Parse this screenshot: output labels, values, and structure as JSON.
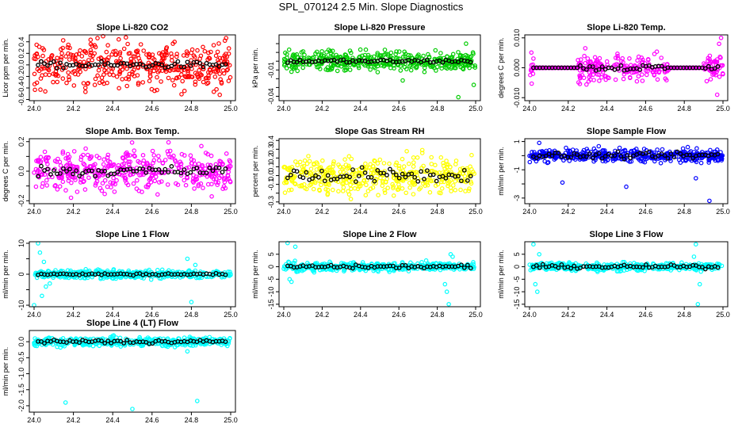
{
  "title": "SPL_070124  2.5 Min. Slope Diagnostics",
  "chart_data": [
    {
      "type": "scatter",
      "title": "Slope Li-820 CO2",
      "ylabel": "Licor ppm per min.",
      "color": "#ff0000",
      "xlim": [
        24.0,
        25.0
      ],
      "ylim": [
        -0.62,
        0.52
      ],
      "xticks": [
        "24.0",
        "24.2",
        "24.4",
        "24.6",
        "24.8",
        "25.0"
      ],
      "yticks": [
        -0.6,
        -0.4,
        -0.2,
        0.0,
        0.2,
        0.4
      ],
      "ytick_labels": [
        "-0.6",
        "-0.4",
        "-0.2",
        "0.0",
        "0.2",
        "0.4"
      ],
      "center": 0.0,
      "spread": 0.5,
      "bspread": 0.08,
      "outliers": []
    },
    {
      "type": "scatter",
      "title": "Slope Li-820 Pressure",
      "ylabel": "kPa per min.",
      "color": "#00cc00",
      "xlim": [
        24.0,
        25.0
      ],
      "ylim": [
        -0.045,
        0.03
      ],
      "xticks": [
        "24.0",
        "24.2",
        "24.4",
        "24.6",
        "24.8",
        "25.0"
      ],
      "yticks": [
        -0.04,
        -0.03,
        -0.02,
        -0.01,
        0.0,
        0.01,
        0.02
      ],
      "ytick_labels": [
        "-0.04",
        "",
        "",
        "-0.01",
        "",
        "",
        ""
      ],
      "center": 0.0,
      "spread": 0.013,
      "bspread": 0.003,
      "outliers": [
        [
          24.91,
          -0.041
        ],
        [
          24.99,
          -0.027
        ],
        [
          24.04,
          -0.012
        ],
        [
          24.62,
          -0.022
        ],
        [
          24.95,
          0.02
        ]
      ]
    },
    {
      "type": "scatter",
      "title": "Slope Li-820 Temp.",
      "ylabel": "degrees C per min.",
      "color": "#ff00ff",
      "xlim": [
        24.0,
        25.0
      ],
      "ylim": [
        -0.011,
        0.011
      ],
      "xticks": [
        "24.0",
        "24.2",
        "24.4",
        "24.6",
        "24.8",
        "25.0"
      ],
      "yticks": [
        -0.01,
        0.0,
        0.01
      ],
      "ytick_labels": [
        "-0.010",
        "0.000",
        "0.010"
      ],
      "center": 0.0,
      "spread": 0.0055,
      "bspread": 0.0015,
      "flat_ranges": [
        [
          24.02,
          24.25
        ],
        [
          24.72,
          24.9
        ]
      ],
      "outliers": [
        [
          24.97,
          -0.009
        ],
        [
          24.98,
          0.008
        ],
        [
          24.99,
          0.01
        ]
      ]
    },
    {
      "type": "scatter",
      "title": "Slope Amb. Box Temp.",
      "ylabel": "degrees C per min.",
      "color": "#ff00ff",
      "xlim": [
        24.0,
        25.0
      ],
      "ylim": [
        -0.22,
        0.22
      ],
      "xticks": [
        "24.0",
        "24.2",
        "24.4",
        "24.6",
        "24.8",
        "25.0"
      ],
      "yticks": [
        -0.2,
        -0.1,
        0.0,
        0.1,
        0.2
      ],
      "ytick_labels": [
        "-0.2",
        "",
        "0.0",
        "",
        "0.2"
      ],
      "center": 0.0,
      "spread": 0.17,
      "bspread": 0.05,
      "outliers": []
    },
    {
      "type": "scatter",
      "title": "Slope Gas Stream RH",
      "ylabel": "percent per min.",
      "color": "#ffff00",
      "xlim": [
        24.0,
        25.0
      ],
      "ylim": [
        -0.32,
        0.42
      ],
      "xticks": [
        "24.0",
        "24.2",
        "24.4",
        "24.6",
        "24.8",
        "25.0"
      ],
      "yticks": [
        -0.3,
        -0.2,
        -0.1,
        0.0,
        0.1,
        0.2,
        0.3,
        0.4
      ],
      "ytick_labels": [
        "-0.3",
        "",
        "-0.1",
        "0.0",
        "0.1",
        "0.2",
        "0.3",
        "0.4"
      ],
      "center": 0.0,
      "spread": 0.25,
      "bspread": 0.12,
      "outliers": []
    },
    {
      "type": "scatter",
      "title": "Slope Sample Flow",
      "ylabel": "ml/min per min.",
      "color": "#0000ff",
      "xlim": [
        24.0,
        25.0
      ],
      "ylim": [
        -3.4,
        1.2
      ],
      "xticks": [
        "24.0",
        "24.2",
        "24.4",
        "24.6",
        "24.8",
        "25.0"
      ],
      "yticks": [
        -3,
        -2,
        -1,
        0,
        1
      ],
      "ytick_labels": [
        "-3",
        "",
        "-1",
        "",
        "1"
      ],
      "center": 0.0,
      "spread": 0.55,
      "bspread": 0.3,
      "outliers": [
        [
          24.05,
          0.9
        ],
        [
          24.17,
          -1.9
        ],
        [
          24.5,
          -2.2
        ],
        [
          24.93,
          -3.2
        ],
        [
          24.86,
          -1.6
        ]
      ]
    },
    {
      "type": "scatter",
      "title": "Slope Line 1 Flow",
      "ylabel": "ml/min per min.",
      "color": "#00ffff",
      "xlim": [
        24.0,
        25.0
      ],
      "ylim": [
        -10.5,
        10.5
      ],
      "xticks": [
        "24.0",
        "24.2",
        "24.4",
        "24.6",
        "24.8",
        "25.0"
      ],
      "yticks": [
        -10,
        -5,
        0,
        5,
        10
      ],
      "ytick_labels": [
        "-10",
        "",
        "0",
        "",
        "10"
      ],
      "center": 0.0,
      "spread": 1.6,
      "bspread": 0.5,
      "outliers": [
        [
          24.02,
          10
        ],
        [
          24.03,
          7
        ],
        [
          24.05,
          4
        ],
        [
          24.06,
          -4
        ],
        [
          24.04,
          -7
        ],
        [
          24.08,
          -3
        ],
        [
          24.78,
          5
        ],
        [
          24.8,
          -9
        ],
        [
          24.82,
          3
        ],
        [
          24.0,
          -10
        ]
      ]
    },
    {
      "type": "scatter",
      "title": "Slope Line 2 Flow",
      "ylabel": "ml/min per min.",
      "color": "#00ffff",
      "xlim": [
        24.0,
        25.0
      ],
      "ylim": [
        -16,
        10
      ],
      "xticks": [
        "24.0",
        "24.2",
        "24.4",
        "24.6",
        "24.8",
        "25.0"
      ],
      "yticks": [
        -15,
        -10,
        -5,
        0,
        5
      ],
      "ytick_labels": [
        "-15",
        "-10",
        "-5",
        "0",
        "5"
      ],
      "center": 0.0,
      "spread": 2.0,
      "bspread": 1.0,
      "outliers": [
        [
          24.02,
          9.5
        ],
        [
          24.03,
          -5
        ],
        [
          24.04,
          -6
        ],
        [
          24.06,
          8
        ],
        [
          24.84,
          -7
        ],
        [
          24.86,
          -15
        ],
        [
          24.87,
          5
        ],
        [
          24.85,
          -10
        ],
        [
          24.88,
          4
        ]
      ]
    },
    {
      "type": "scatter",
      "title": "Slope Line 3 Flow",
      "ylabel": "ml/min per min.",
      "color": "#00ffff",
      "xlim": [
        24.0,
        25.0
      ],
      "ylim": [
        -16,
        10
      ],
      "xticks": [
        "24.0",
        "24.2",
        "24.4",
        "24.6",
        "24.8",
        "25.0"
      ],
      "yticks": [
        -15,
        -10,
        -5,
        0,
        5
      ],
      "ytick_labels": [
        "-15",
        "-10",
        "-5",
        "0",
        "5"
      ],
      "center": 0.0,
      "spread": 2.0,
      "bspread": 1.0,
      "outliers": [
        [
          24.02,
          9
        ],
        [
          24.03,
          -7
        ],
        [
          24.04,
          -10
        ],
        [
          24.05,
          5
        ],
        [
          24.86,
          9
        ],
        [
          24.87,
          -15
        ],
        [
          24.88,
          -7
        ],
        [
          24.85,
          4
        ]
      ]
    },
    {
      "type": "scatter",
      "title": "Slope Line 4 (LT) Flow",
      "ylabel": "ml/min per min.",
      "color": "#00ffff",
      "xlim": [
        24.0,
        25.0
      ],
      "ylim": [
        -2.2,
        0.35
      ],
      "xticks": [
        "24.0",
        "24.2",
        "24.4",
        "24.6",
        "24.8",
        "25.0"
      ],
      "yticks": [
        -2,
        -1.5,
        -1,
        -0.5,
        0
      ],
      "ytick_labels": [
        "-2.0",
        "-1.5",
        "-1.0",
        "-0.5",
        "0.0"
      ],
      "center": 0.0,
      "spread": 0.17,
      "bspread": 0.1,
      "outliers": [
        [
          24.16,
          -1.9
        ],
        [
          24.5,
          -2.1
        ],
        [
          24.83,
          -1.85
        ],
        [
          24.78,
          -0.3
        ]
      ]
    }
  ]
}
